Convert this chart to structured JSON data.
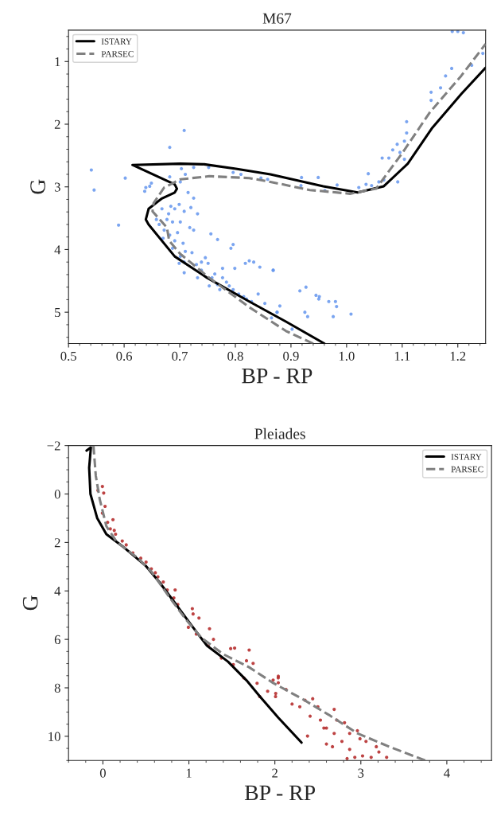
{
  "chart_data": [
    {
      "type": "scatter",
      "title": "M67",
      "xlabel": "BP - RP",
      "ylabel": "G",
      "xlim": [
        0.5,
        1.25
      ],
      "ylim": [
        5.5,
        0.5
      ],
      "xticks": [
        0.5,
        0.6,
        0.7,
        0.8,
        0.9,
        {
          "value": 1,
          "label": "1.0"
        },
        1.1,
        1.2
      ],
      "yticks": [
        1,
        2,
        3,
        4,
        5
      ],
      "legend": "top left",
      "grid": false,
      "series": [
        {
          "color": "#6495ed",
          "marker": "circle",
          "x": [
            0.708,
            0.682,
            0.541,
            0.546,
            0.602,
            0.59,
            0.703,
            0.725,
            0.752,
            0.796,
            0.81,
            0.846,
            0.858,
            0.682,
            0.649,
            0.639,
            0.637,
            0.71,
            0.725,
            0.684,
            0.691,
            0.699,
            0.708,
            0.72,
            0.732,
            0.677,
            0.687,
            0.658,
            0.663,
            0.672,
            0.682,
            0.691,
            0.706,
            0.718,
            0.725,
            0.756,
            0.768,
            0.796,
            0.792,
            0.71,
            0.722,
            0.708,
            0.699,
            0.708,
            0.73,
            0.746,
            0.751,
            0.739,
            0.758,
            0.768,
            0.777,
            0.784,
            0.796,
            0.806,
            0.777,
            0.799,
            0.818,
            0.825,
            0.833,
            0.844,
            0.868,
            0.841,
            0.853,
            0.829,
            0.875,
            0.815,
            0.732,
            0.772,
            0.753,
            0.646,
            0.701,
            0.715,
            0.668,
            0.68,
            0.701,
            0.696,
            0.67,
            0.687,
            0.701,
            0.739,
            0.763,
            0.789,
            0.82,
            0.868,
            0.916,
            0.927,
            0.945,
            0.951,
            0.95,
            0.968,
            0.98,
            0.982,
            0.976,
            0.925,
            0.93,
            0.88,
            0.875,
            0.865,
            1.008,
            0.902,
            0.919,
            0.949,
            0.918,
            0.961,
            0.983,
            1.022,
            1.035,
            1.039,
            1.045,
            1.058,
            1.067,
            1.064,
            1.076,
            1.083,
            1.091,
            1.096,
            1.092,
            1.104,
            1.104,
            1.108,
            1.108,
            1.152,
            1.152,
            1.169,
            1.178,
            1.189,
            1.225,
            1.245,
            1.19,
            1.2,
            1.21
          ],
          "values": [
            2.1,
            2.37,
            2.73,
            3.05,
            2.86,
            3.61,
            2.71,
            2.69,
            2.69,
            2.77,
            2.8,
            2.86,
            2.88,
            2.84,
            2.94,
            3.01,
            3.07,
            2.8,
            3.18,
            3.31,
            3.35,
            3.28,
            3.39,
            3.33,
            3.43,
            3.52,
            3.56,
            3.52,
            3.6,
            3.69,
            3.77,
            3.86,
            3.9,
            3.65,
            3.69,
            3.75,
            3.84,
            3.92,
            3.98,
            4.03,
            4.05,
            4.2,
            4.22,
            4.37,
            4.24,
            4.13,
            4.22,
            4.33,
            4.45,
            4.56,
            4.45,
            4.52,
            4.64,
            4.71,
            4.3,
            4.3,
            4.22,
            4.18,
            4.2,
            4.28,
            4.33,
            4.71,
            4.86,
            4.83,
            5.0,
            4.75,
            4.45,
            4.64,
            4.58,
            2.99,
            2.92,
            3.09,
            3.35,
            3.43,
            3.56,
            3.73,
            3.82,
            3.98,
            4.11,
            4.2,
            4.39,
            4.58,
            4.79,
            4.33,
            4.66,
            4.6,
            4.73,
            4.75,
            4.79,
            4.83,
            4.83,
            4.91,
            5.07,
            5.0,
            5.07,
            4.9,
            5.0,
            5.09,
            5.03,
            5.27,
            2.85,
            2.85,
            2.98,
            3.06,
            2.97,
            3.01,
            2.96,
            2.79,
            2.98,
            2.92,
            2.89,
            2.54,
            2.54,
            2.41,
            2.32,
            2.45,
            2.92,
            2.56,
            2.27,
            2.14,
            1.96,
            1.49,
            1.62,
            1.42,
            1.23,
            1.11,
            1.06,
            0.87,
            0.52,
            0.52,
            0.54
          ]
        },
        {
          "type": "line",
          "name": "ISTARY",
          "color": "#000000",
          "line_style": "solid",
          "x": [
            0.96,
            0.891,
            0.825,
            0.749,
            0.691,
            0.644,
            0.639,
            0.644,
            0.667,
            0.691,
            0.695,
            0.691,
            0.615,
            0.701,
            0.744,
            0.801,
            0.863,
            0.958,
            1.02,
            1.067,
            1.11,
            1.153,
            1.206,
            1.25
          ],
          "values": [
            5.5,
            5.15,
            4.83,
            4.45,
            4.11,
            3.6,
            3.52,
            3.35,
            3.19,
            3.09,
            3.03,
            2.96,
            2.65,
            2.63,
            2.64,
            2.71,
            2.8,
            2.99,
            3.09,
            2.99,
            2.63,
            2.07,
            1.52,
            1.1
          ]
        },
        {
          "type": "line",
          "name": "PARSEC",
          "color": "#808080",
          "line_style": "dashed",
          "x": [
            0.94,
            0.891,
            0.825,
            0.753,
            0.701,
            0.681,
            0.677,
            0.651,
            0.653,
            0.672,
            0.701,
            0.753,
            0.825,
            0.863,
            0.934,
            1.006,
            1.053,
            1.101,
            1.149,
            1.206,
            1.25
          ],
          "values": [
            5.5,
            5.3,
            4.92,
            4.45,
            4.07,
            3.86,
            3.65,
            3.39,
            3.26,
            3.01,
            2.88,
            2.83,
            2.86,
            2.92,
            3.05,
            3.11,
            3.03,
            2.45,
            1.82,
            1.23,
            0.72
          ]
        }
      ]
    },
    {
      "type": "scatter",
      "title": "Pleiades",
      "xlabel": "BP - RP",
      "ylabel": "G",
      "xlim": [
        -0.4,
        4.52
      ],
      "ylim": [
        11,
        -2
      ],
      "xticks": [
        0,
        1,
        2,
        3,
        4
      ],
      "yticks": [
        {
          "value": -2,
          "label": "−2"
        },
        0,
        2,
        4,
        6,
        8,
        10
      ],
      "legend": "top right",
      "grid": false,
      "series": [
        {
          "color": "#b22222",
          "marker": "circle",
          "x": [
            -0.006,
            0.009,
            -0.058,
            0.025,
            -0.006,
            0.117,
            0.055,
            0.132,
            0.147,
            0.086,
            0.225,
            0.271,
            0.348,
            0.44,
            0.502,
            0.563,
            0.609,
            0.64,
            0.702,
            0.748,
            0.84,
            0.825,
            0.871,
            1.04,
            1.049,
            1.117,
            0.994,
            1.086,
            1.24,
            1.286,
            1.225,
            1.486,
            1.532,
            1.701,
            1.378,
            1.517,
            1.67,
            1.747,
            1.639,
            1.793,
            1.916,
            2.008,
            1.824,
            2.039,
            2.04,
            1.98,
            2.13,
            2.01,
            2.2,
            2.29,
            2.35,
            2.41,
            2.53,
            2.5,
            2.44,
            2.6,
            2.69,
            2.78,
            2.87,
            2.93,
            3.02,
            3.12,
            2.72,
            2.81,
            2.87,
            2.96,
            2.99,
            3.06,
            3.18,
            3.21,
            3.3,
            2.6,
            2.38,
            2.69,
            2.04,
            2.57,
            2.84,
            2.67
          ],
          "values": [
            -0.31,
            -0.04,
            -0.15,
            0.51,
            0.79,
            1.06,
            1.17,
            1.5,
            1.66,
            1.44,
            1.94,
            2.1,
            2.43,
            2.65,
            2.81,
            3.09,
            3.25,
            3.42,
            3.63,
            3.96,
            3.96,
            4.29,
            4.56,
            4.73,
            4.95,
            5.12,
            5.5,
            5.78,
            5.56,
            6.0,
            6.27,
            6.38,
            6.36,
            6.44,
            6.77,
            7.04,
            6.88,
            6.99,
            7.59,
            7.81,
            8.14,
            8.36,
            8.36,
            7.59,
            7.52,
            7.68,
            8.07,
            8.23,
            8.67,
            8.78,
            8.51,
            9.17,
            9.33,
            8.78,
            8.45,
            9.66,
            9.88,
            10.21,
            10.54,
            10.87,
            10.81,
            10.87,
            9.33,
            9.44,
            9.88,
            9.77,
            10.1,
            10.21,
            10.43,
            10.65,
            10.87,
            10.32,
            9.99,
            8.89,
            7.79,
            9.66,
            10.92,
            10.43
          ]
        },
        {
          "type": "line",
          "name": "ISTARY",
          "color": "#000000",
          "line_style": "solid",
          "x": [
            2.31,
            2.04,
            1.825,
            1.67,
            1.455,
            1.21,
            1.024,
            0.84,
            0.655,
            0.5,
            0.225,
            0.04,
            -0.067,
            -0.145,
            -0.16,
            -0.14,
            -0.19
          ],
          "values": [
            10.26,
            9.23,
            8.35,
            7.69,
            6.92,
            6.26,
            5.39,
            4.51,
            3.63,
            2.97,
            2.15,
            1.66,
            0.99,
            0.0,
            -1.08,
            -1.92,
            -1.79
          ]
        },
        {
          "type": "line",
          "name": "PARSEC",
          "color": "#808080",
          "line_style": "dashed",
          "x": [
            -0.11,
            -0.083,
            -0.037,
            0.04,
            0.163,
            0.409,
            0.563,
            0.779,
            0.963,
            1.148,
            1.394,
            1.7,
            1.98,
            2.32,
            2.63,
            2.96,
            3.33,
            3.75
          ],
          "values": [
            -2,
            -0.76,
            0.22,
            1.33,
            1.99,
            2.65,
            3.2,
            4.29,
            5.17,
            5.94,
            6.6,
            7.15,
            7.8,
            8.46,
            9.12,
            9.88,
            10.43,
            11
          ]
        }
      ]
    }
  ]
}
